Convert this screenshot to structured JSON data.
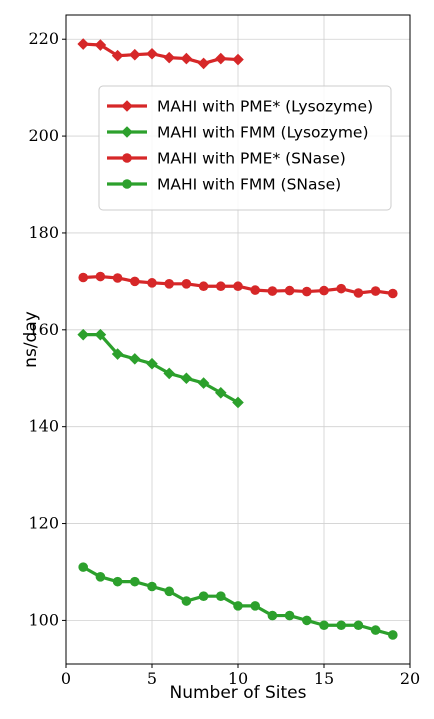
{
  "chart_data": {
    "type": "line",
    "title": "",
    "xlabel": "Number of Sites",
    "ylabel": "ns/day",
    "xlim": [
      0,
      20
    ],
    "ylim": [
      91,
      225
    ],
    "xticks": [
      0,
      5,
      10,
      15,
      20
    ],
    "yticks": [
      100,
      120,
      140,
      160,
      180,
      200,
      220
    ],
    "grid": true,
    "legend_position": "upper-right",
    "series": [
      {
        "name": "MAHI with PME* (Lysozyme)",
        "color": "#d62728",
        "marker": "diamond",
        "x": [
          1,
          2,
          3,
          4,
          5,
          6,
          7,
          8,
          9,
          10
        ],
        "y": [
          219,
          218.8,
          216.6,
          216.8,
          217,
          216.2,
          216,
          215,
          216,
          215.8
        ]
      },
      {
        "name": "MAHI with FMM (Lysozyme)",
        "color": "#2ca02c",
        "marker": "diamond",
        "x": [
          1,
          2,
          3,
          4,
          5,
          6,
          7,
          8,
          9,
          10
        ],
        "y": [
          159,
          159,
          155,
          154,
          153,
          151,
          150,
          149,
          147,
          145
        ]
      },
      {
        "name": "MAHI with PME* (SNase)",
        "color": "#d62728",
        "marker": "circle",
        "x": [
          1,
          2,
          3,
          4,
          5,
          6,
          7,
          8,
          9,
          10,
          11,
          12,
          13,
          14,
          15,
          16,
          17,
          18,
          19
        ],
        "y": [
          170.8,
          171,
          170.7,
          170,
          169.7,
          169.5,
          169.5,
          169,
          169,
          169,
          168.2,
          168,
          168.1,
          167.9,
          168.1,
          168.5,
          167.6,
          168,
          167.5
        ]
      },
      {
        "name": "MAHI with FMM (SNase)",
        "color": "#2ca02c",
        "marker": "circle",
        "x": [
          1,
          2,
          3,
          4,
          5,
          6,
          7,
          8,
          9,
          10,
          11,
          12,
          13,
          14,
          15,
          16,
          17,
          18,
          19
        ],
        "y": [
          111,
          109,
          108,
          108,
          107,
          106,
          104,
          105,
          105,
          103,
          103,
          101,
          101,
          100,
          99,
          99,
          99,
          98,
          97
        ]
      }
    ]
  }
}
